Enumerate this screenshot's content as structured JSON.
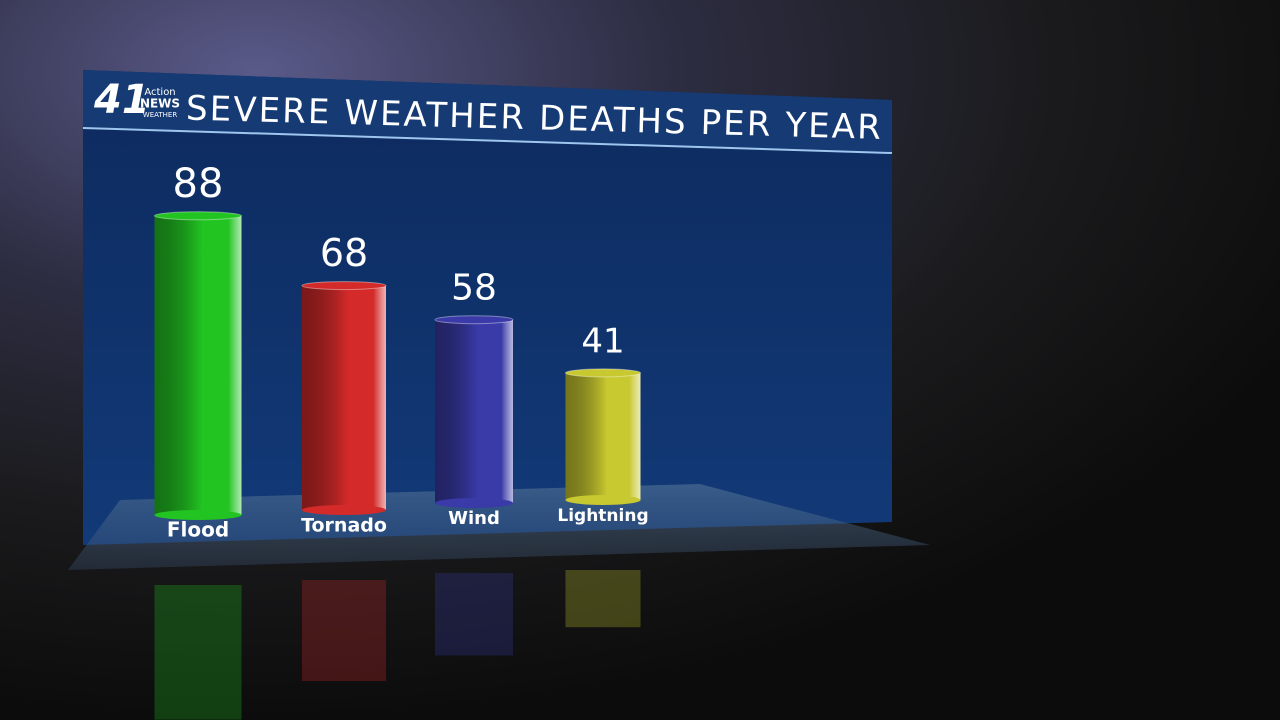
{
  "chart_data": {
    "type": "bar",
    "title": "SEVERE WEATHER DEATHS PER YEAR",
    "logo": {
      "number": "41",
      "line1": "Action",
      "line2": "NEWS",
      "line3": "WEATHER"
    },
    "categories": [
      "Flood",
      "Tornado",
      "Wind",
      "Lightning"
    ],
    "values": [
      88,
      68,
      58,
      41
    ],
    "colors": [
      "#22c422",
      "#d42a2a",
      "#3a3aa8",
      "#c8c830"
    ]
  }
}
